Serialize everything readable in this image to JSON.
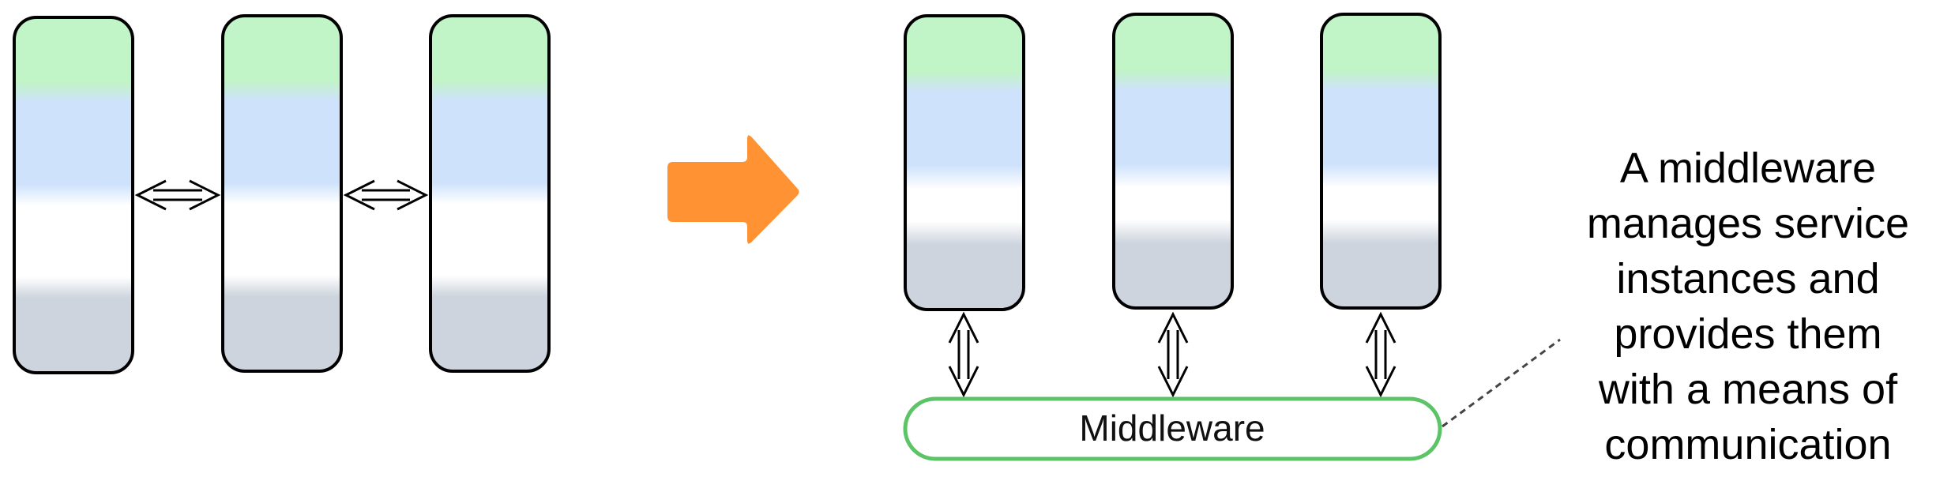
{
  "middleware": {
    "label": "Middleware"
  },
  "annotation": {
    "text": "A middleware\nmanages service\ninstances and\nprovides them\nwith a means of\ncommunication"
  },
  "colors": {
    "service_top": "#c1f4c6",
    "service_middle": "#cfe2fc",
    "service_lower": "#ffffff",
    "service_bottom": "#cdd4dd",
    "middleware_border": "#5cc466",
    "transition_arrow": "#ff9233",
    "outline": "#000000",
    "callout_line": "#444444"
  },
  "icons": {
    "transition": "right-arrow-icon",
    "link": "double-headed-arrow-icon"
  }
}
